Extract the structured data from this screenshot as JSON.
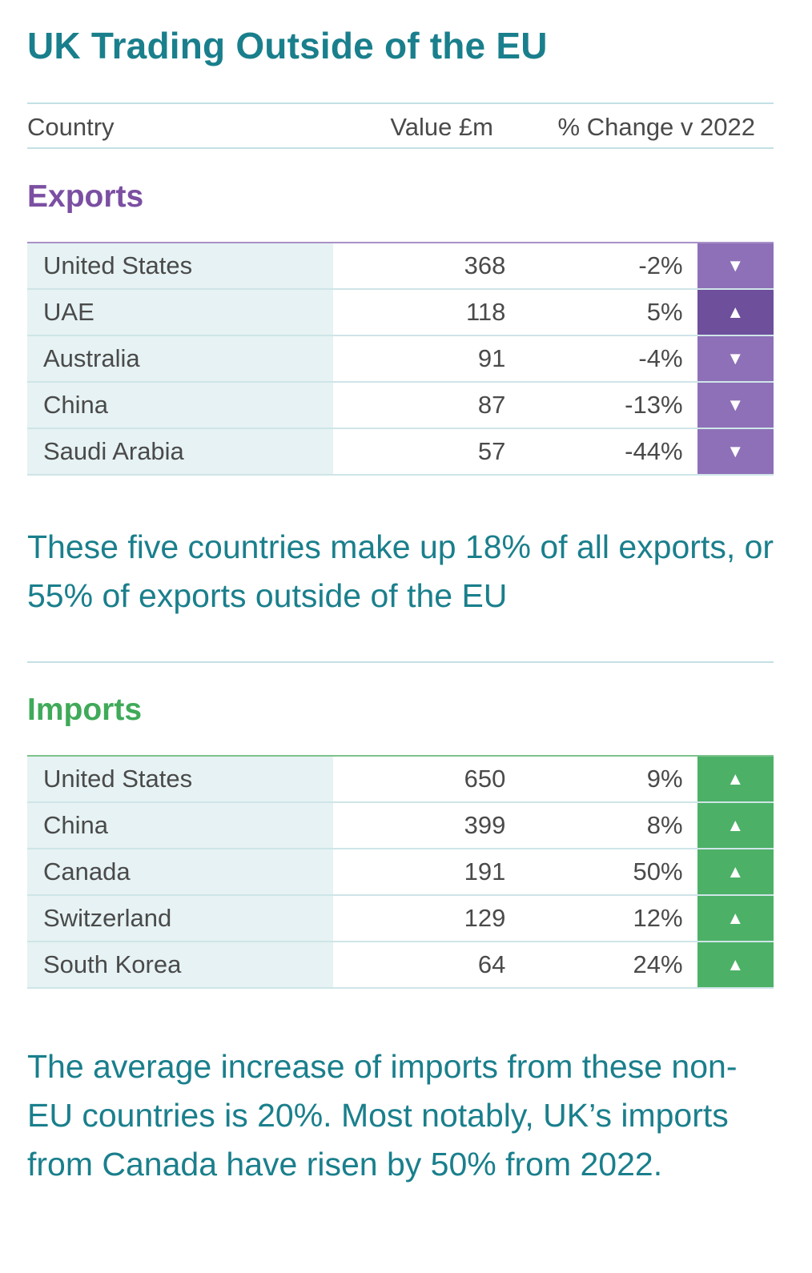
{
  "title": "UK Trading Outside of the EU",
  "header": {
    "country": "Country",
    "value": "Value £m",
    "change": "% Change v 2022"
  },
  "exports": {
    "label": "Exports",
    "rows": [
      {
        "country": "United States",
        "value": "368",
        "change": "-2%",
        "direction": "down",
        "arrow": "▼"
      },
      {
        "country": "UAE",
        "value": "118",
        "change": "5%",
        "direction": "up",
        "arrow": "▲"
      },
      {
        "country": "Australia",
        "value": "91",
        "change": "-4%",
        "direction": "down",
        "arrow": "▼"
      },
      {
        "country": "China",
        "value": "87",
        "change": "-13%",
        "direction": "down",
        "arrow": "▼"
      },
      {
        "country": "Saudi Arabia",
        "value": "57",
        "change": "-44%",
        "direction": "down",
        "arrow": "▼"
      }
    ],
    "note": "These five countries make up 18% of all exports, or 55% of exports outside of the EU"
  },
  "imports": {
    "label": "Imports",
    "rows": [
      {
        "country": "United States",
        "value": "650",
        "change": "9%",
        "direction": "up",
        "arrow": "▲"
      },
      {
        "country": "China",
        "value": "399",
        "change": "8%",
        "direction": "up",
        "arrow": "▲"
      },
      {
        "country": "Canada",
        "value": "191",
        "change": "50%",
        "direction": "up",
        "arrow": "▲"
      },
      {
        "country": "Switzerland",
        "value": "129",
        "change": "12%",
        "direction": "up",
        "arrow": "▲"
      },
      {
        "country": "South Korea",
        "value": "64",
        "change": "24%",
        "direction": "up",
        "arrow": "▲"
      }
    ],
    "note": "The average increase of imports from these non-EU countries is 20%. Most notably, UK’s imports from Canada have risen by 50% from 2022."
  },
  "colors": {
    "title": "#1a7f8c",
    "exports_accent": "#7b4fa2",
    "imports_accent": "#3faa59",
    "down_arrow_bg": "#8e70b8",
    "up_arrow_export_bg": "#6e4f9c",
    "up_arrow_import_bg": "#4cb167"
  }
}
